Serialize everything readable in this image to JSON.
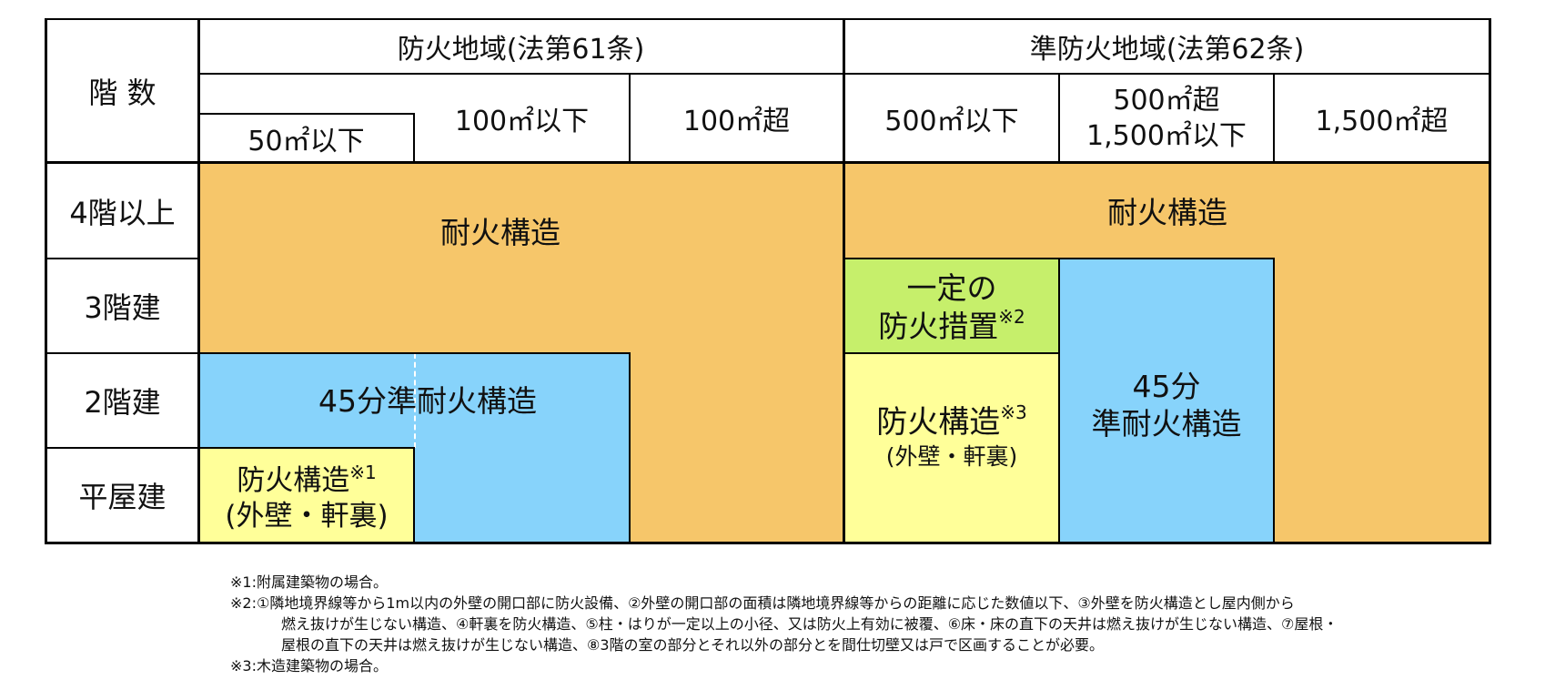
{
  "header": {
    "stories_label": "階 数",
    "fire_zone": "防火地域(法第61条)",
    "quasi_fire_zone": "準防火地域(法第62条)",
    "fz_col1": "50㎡以下",
    "fz_col2": "100㎡以下",
    "fz_col3": "100㎡超",
    "qfz_col1": "500㎡以下",
    "qfz_col2_line1": "500㎡超",
    "qfz_col2_line2": "1,500㎡以下",
    "qfz_col3": "1,500㎡超"
  },
  "rows": {
    "r4": "4階以上",
    "r3": "3階建",
    "r2": "2階建",
    "r1": "平屋建"
  },
  "cells": {
    "fz_fireproof": "耐火構造",
    "fz_45min": "45分準耐火構造",
    "fz_fireprotect_line1": "防火構造",
    "fz_fireprotect_note": "※1",
    "fz_fireprotect_line2": "(外壁・軒裏)",
    "qfz_fireproof": "耐火構造",
    "qfz_measures_line1": "一定の",
    "qfz_measures_line2": "防火措置",
    "qfz_measures_note": "※2",
    "qfz_fireprotect_line1": "防火構造",
    "qfz_fireprotect_note": "※3",
    "qfz_fireprotect_line2": "(外壁・軒裏)",
    "qfz_45min_line1": "45分",
    "qfz_45min_line2": "準耐火構造"
  },
  "colors": {
    "fireproof": "#f6c66a",
    "quasi_fireproof_45": "#87d3fb",
    "fire_protection": "#ffff99",
    "fire_measures": "#c6ef6b",
    "grid": "#000000"
  },
  "notes": {
    "n1": "※1:附属建築物の場合。",
    "n2_l1": "※2:①隣地境界線等から1m以内の外壁の開口部に防火設備、②外壁の開口部の面積は隣地境界線等からの距離に応じた数値以下、③外壁を防火構造とし屋内側から",
    "n2_l2": "燃え抜けが生じない構造、④軒裏を防火構造、⑤柱・はりが一定以上の小径、又は防火上有効に被覆、⑥床・床の直下の天井は燃え抜けが生じない構造、⑦屋根・",
    "n2_l3": "屋根の直下の天井は燃え抜けが生じない構造、⑧3階の室の部分とそれ以外の部分とを間仕切壁又は戸で区画することが必要。",
    "n3": "※3:木造建築物の場合。"
  }
}
